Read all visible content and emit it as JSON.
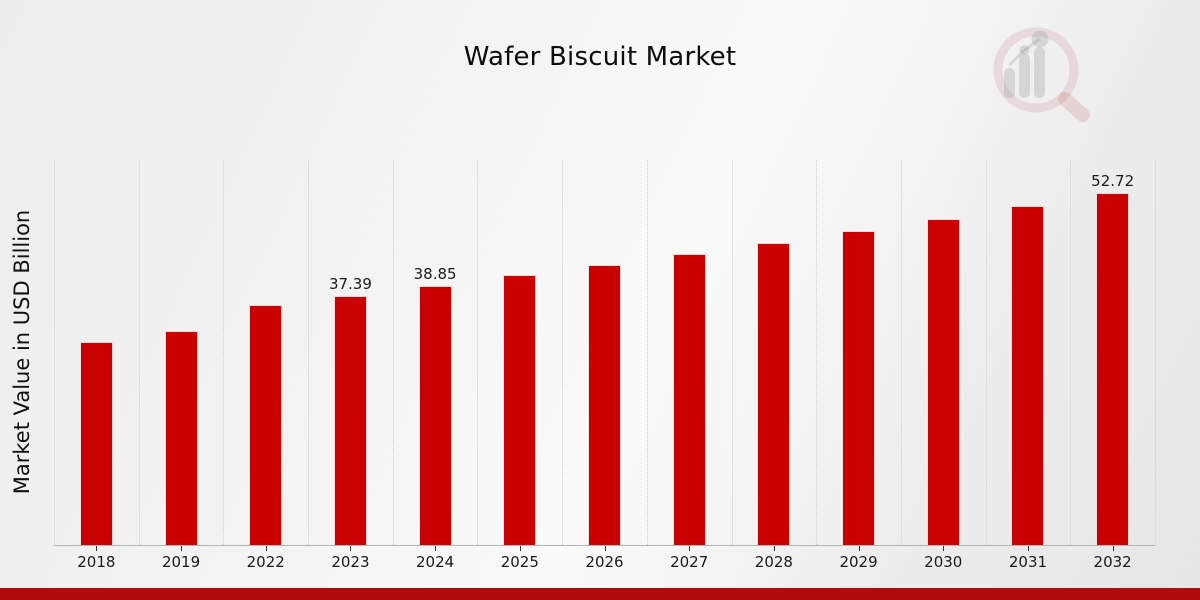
{
  "page": {
    "title": "Wafer Biscuit Market",
    "bottom_strip_color": "#b00c0c"
  },
  "watermark": {
    "icon": "magnifier-bar-chart-logo",
    "ring_color": "#b24b4b",
    "bars_color": "#808080"
  },
  "chart_data": {
    "type": "bar",
    "title": "Wafer Biscuit Market",
    "xlabel": "",
    "ylabel": "Market Value in USD Billion",
    "categories": [
      "2018",
      "2019",
      "2022",
      "2023",
      "2024",
      "2025",
      "2026",
      "2027",
      "2028",
      "2029",
      "2030",
      "2031",
      "2032"
    ],
    "values": [
      30.4,
      32.1,
      36.0,
      37.39,
      38.85,
      40.4,
      41.9,
      43.6,
      45.3,
      47.0,
      48.9,
      50.8,
      52.72
    ],
    "point_labels": [
      null,
      null,
      null,
      "37.39",
      "38.85",
      null,
      null,
      null,
      null,
      null,
      null,
      null,
      "52.72"
    ],
    "ylim": [
      0,
      57.7
    ],
    "grid": {
      "vertical": true,
      "style": "dotted",
      "color": "#cfcfcf"
    },
    "bar_color": "#c90101",
    "bar_border_color": "rgba(255,255,255,0.85)",
    "axis_line_color": "#b3b3b3",
    "tick_color": "#333333",
    "label_color": "#1a1a1a",
    "legend": false
  }
}
